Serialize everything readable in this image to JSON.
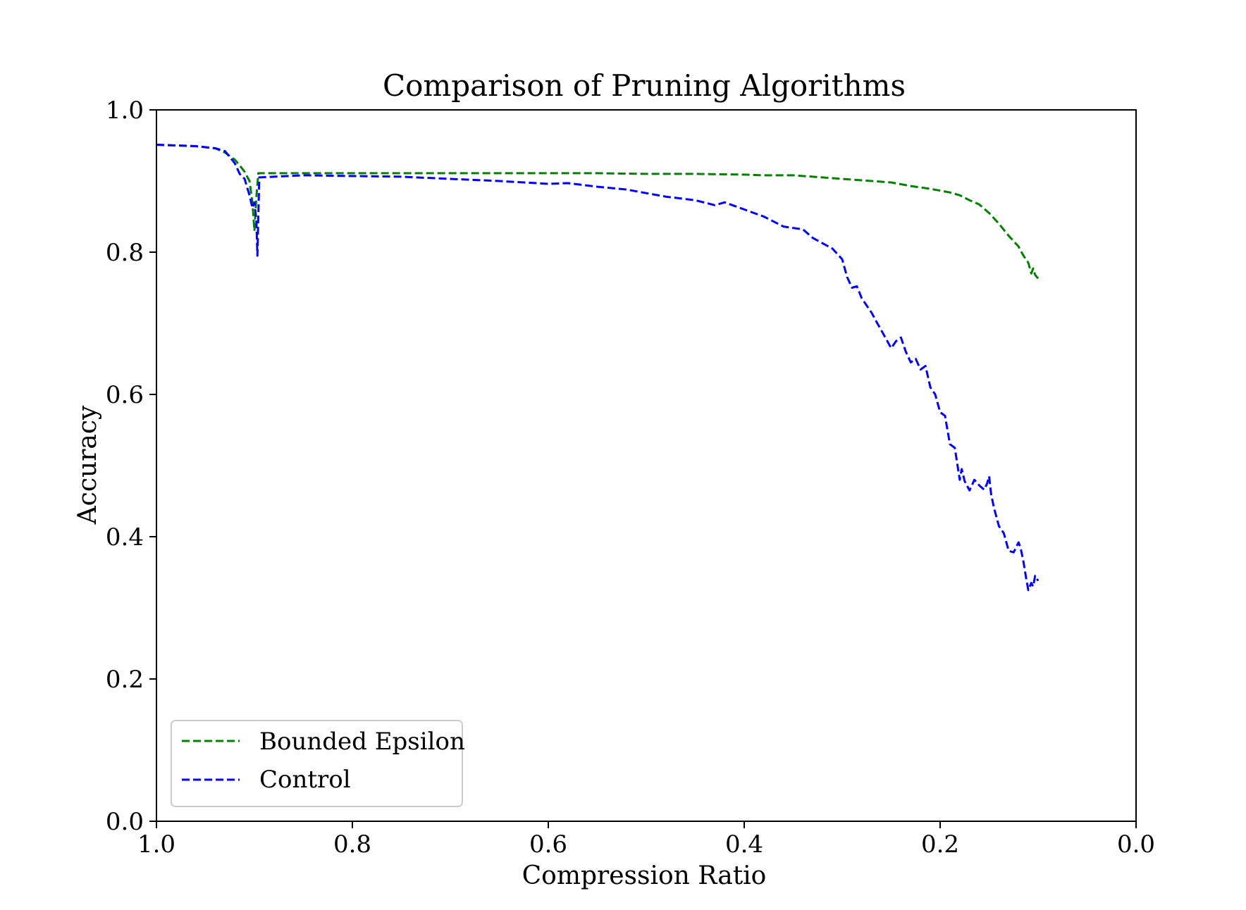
{
  "chart_data": {
    "type": "line",
    "title": "Comparison of Pruning Algorithms",
    "xlabel": "Compression Ratio",
    "ylabel": "Accuracy",
    "xlim": [
      1.0,
      0.0
    ],
    "ylim": [
      0.0,
      1.0
    ],
    "x_ticks": [
      "1.0",
      "0.8",
      "0.6",
      "0.4",
      "0.2",
      "0.0"
    ],
    "y_ticks": [
      "0.0",
      "0.2",
      "0.4",
      "0.6",
      "0.8",
      "1.0"
    ],
    "x_tick_values": [
      1.0,
      0.8,
      0.6,
      0.4,
      0.2,
      0.0
    ],
    "y_tick_values": [
      0.0,
      0.2,
      0.4,
      0.6,
      0.8,
      1.0
    ],
    "legend_position": "lower-left",
    "grid": false,
    "series": [
      {
        "name": "Bounded Epsilon",
        "color": "#008000",
        "style": "dashed",
        "points": [
          [
            1.0,
            0.951
          ],
          [
            0.98,
            0.95
          ],
          [
            0.96,
            0.949
          ],
          [
            0.94,
            0.946
          ],
          [
            0.93,
            0.94
          ],
          [
            0.92,
            0.93
          ],
          [
            0.915,
            0.922
          ],
          [
            0.91,
            0.913
          ],
          [
            0.905,
            0.9
          ],
          [
            0.902,
            0.87
          ],
          [
            0.9,
            0.83
          ],
          [
            0.898,
            0.878
          ],
          [
            0.896,
            0.911
          ],
          [
            0.85,
            0.911
          ],
          [
            0.8,
            0.911
          ],
          [
            0.75,
            0.911
          ],
          [
            0.7,
            0.911
          ],
          [
            0.65,
            0.911
          ],
          [
            0.6,
            0.911
          ],
          [
            0.55,
            0.911
          ],
          [
            0.5,
            0.91
          ],
          [
            0.45,
            0.91
          ],
          [
            0.4,
            0.909
          ],
          [
            0.38,
            0.908
          ],
          [
            0.35,
            0.908
          ],
          [
            0.32,
            0.905
          ],
          [
            0.3,
            0.903
          ],
          [
            0.28,
            0.901
          ],
          [
            0.25,
            0.898
          ],
          [
            0.23,
            0.893
          ],
          [
            0.21,
            0.889
          ],
          [
            0.19,
            0.884
          ],
          [
            0.18,
            0.88
          ],
          [
            0.17,
            0.873
          ],
          [
            0.16,
            0.867
          ],
          [
            0.15,
            0.855
          ],
          [
            0.14,
            0.84
          ],
          [
            0.13,
            0.823
          ],
          [
            0.12,
            0.808
          ],
          [
            0.115,
            0.795
          ],
          [
            0.11,
            0.785
          ],
          [
            0.107,
            0.77
          ],
          [
            0.105,
            0.777
          ],
          [
            0.103,
            0.768
          ],
          [
            0.1,
            0.763
          ]
        ]
      },
      {
        "name": "Control",
        "color": "#0000ff",
        "style": "dashed",
        "points": [
          [
            1.0,
            0.951
          ],
          [
            0.98,
            0.95
          ],
          [
            0.96,
            0.949
          ],
          [
            0.94,
            0.946
          ],
          [
            0.93,
            0.942
          ],
          [
            0.92,
            0.925
          ],
          [
            0.915,
            0.91
          ],
          [
            0.91,
            0.903
          ],
          [
            0.905,
            0.88
          ],
          [
            0.902,
            0.862
          ],
          [
            0.9,
            0.87
          ],
          [
            0.898,
            0.845
          ],
          [
            0.897,
            0.795
          ],
          [
            0.895,
            0.905
          ],
          [
            0.85,
            0.908
          ],
          [
            0.8,
            0.907
          ],
          [
            0.75,
            0.906
          ],
          [
            0.7,
            0.903
          ],
          [
            0.65,
            0.9
          ],
          [
            0.6,
            0.896
          ],
          [
            0.58,
            0.897
          ],
          [
            0.55,
            0.892
          ],
          [
            0.52,
            0.888
          ],
          [
            0.5,
            0.883
          ],
          [
            0.48,
            0.878
          ],
          [
            0.45,
            0.873
          ],
          [
            0.43,
            0.866
          ],
          [
            0.42,
            0.87
          ],
          [
            0.4,
            0.86
          ],
          [
            0.38,
            0.85
          ],
          [
            0.36,
            0.836
          ],
          [
            0.34,
            0.832
          ],
          [
            0.33,
            0.82
          ],
          [
            0.31,
            0.805
          ],
          [
            0.3,
            0.79
          ],
          [
            0.295,
            0.765
          ],
          [
            0.29,
            0.75
          ],
          [
            0.285,
            0.752
          ],
          [
            0.28,
            0.735
          ],
          [
            0.27,
            0.715
          ],
          [
            0.265,
            0.702
          ],
          [
            0.26,
            0.69
          ],
          [
            0.25,
            0.665
          ],
          [
            0.245,
            0.675
          ],
          [
            0.24,
            0.68
          ],
          [
            0.235,
            0.66
          ],
          [
            0.23,
            0.645
          ],
          [
            0.225,
            0.65
          ],
          [
            0.22,
            0.635
          ],
          [
            0.215,
            0.64
          ],
          [
            0.21,
            0.61
          ],
          [
            0.205,
            0.6
          ],
          [
            0.2,
            0.575
          ],
          [
            0.195,
            0.57
          ],
          [
            0.19,
            0.53
          ],
          [
            0.185,
            0.525
          ],
          [
            0.18,
            0.48
          ],
          [
            0.178,
            0.495
          ],
          [
            0.175,
            0.478
          ],
          [
            0.17,
            0.465
          ],
          [
            0.165,
            0.48
          ],
          [
            0.16,
            0.472
          ],
          [
            0.155,
            0.466
          ],
          [
            0.152,
            0.475
          ],
          [
            0.15,
            0.485
          ],
          [
            0.148,
            0.46
          ],
          [
            0.145,
            0.44
          ],
          [
            0.14,
            0.415
          ],
          [
            0.135,
            0.405
          ],
          [
            0.13,
            0.38
          ],
          [
            0.125,
            0.378
          ],
          [
            0.12,
            0.392
          ],
          [
            0.118,
            0.385
          ],
          [
            0.115,
            0.365
          ],
          [
            0.112,
            0.34
          ],
          [
            0.11,
            0.325
          ],
          [
            0.107,
            0.335
          ],
          [
            0.105,
            0.33
          ],
          [
            0.103,
            0.345
          ],
          [
            0.1,
            0.338
          ]
        ]
      }
    ]
  }
}
